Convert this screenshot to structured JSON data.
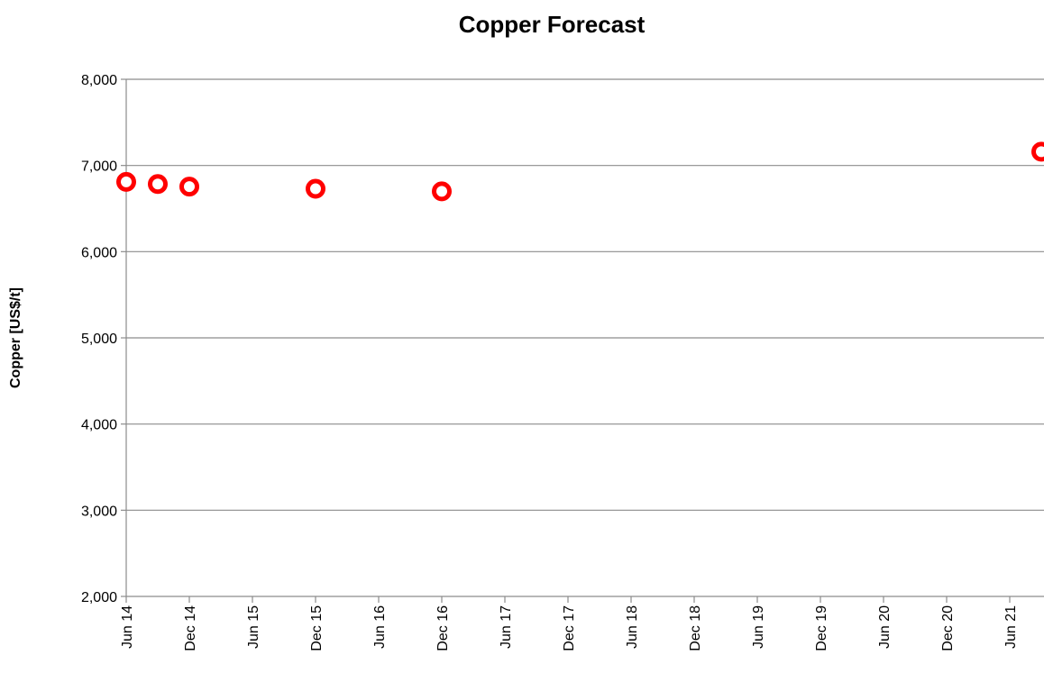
{
  "chart_data": {
    "type": "scatter",
    "title": "Copper Forecast",
    "xlabel": "",
    "ylabel": "Copper [US$/t]",
    "ylim": [
      2000,
      8000
    ],
    "yticks": [
      2000,
      3000,
      4000,
      5000,
      6000,
      7000,
      8000
    ],
    "ytick_labels": [
      "2,000",
      "3,000",
      "4,000",
      "5,000",
      "6,000",
      "7,000",
      "8,000"
    ],
    "xlim": [
      "2014-06",
      "2021-09"
    ],
    "xtick_labels": [
      "Jun 14",
      "Dec 14",
      "Jun 15",
      "Dec 15",
      "Jun 16",
      "Dec 16",
      "Jun 17",
      "Dec 17",
      "Jun 18",
      "Dec 18",
      "Jun 19",
      "Dec 19",
      "Jun 20",
      "Dec 20",
      "Jun 21"
    ],
    "grid": "horizontal",
    "marker_color": "#ff0000",
    "series": [
      {
        "x": [
          "2014-06",
          "2014-09",
          "2014-12",
          "2015-12",
          "2016-12",
          "2021-09"
        ],
        "y": [
          6810,
          6785,
          6755,
          6730,
          6700,
          7160
        ]
      }
    ]
  }
}
